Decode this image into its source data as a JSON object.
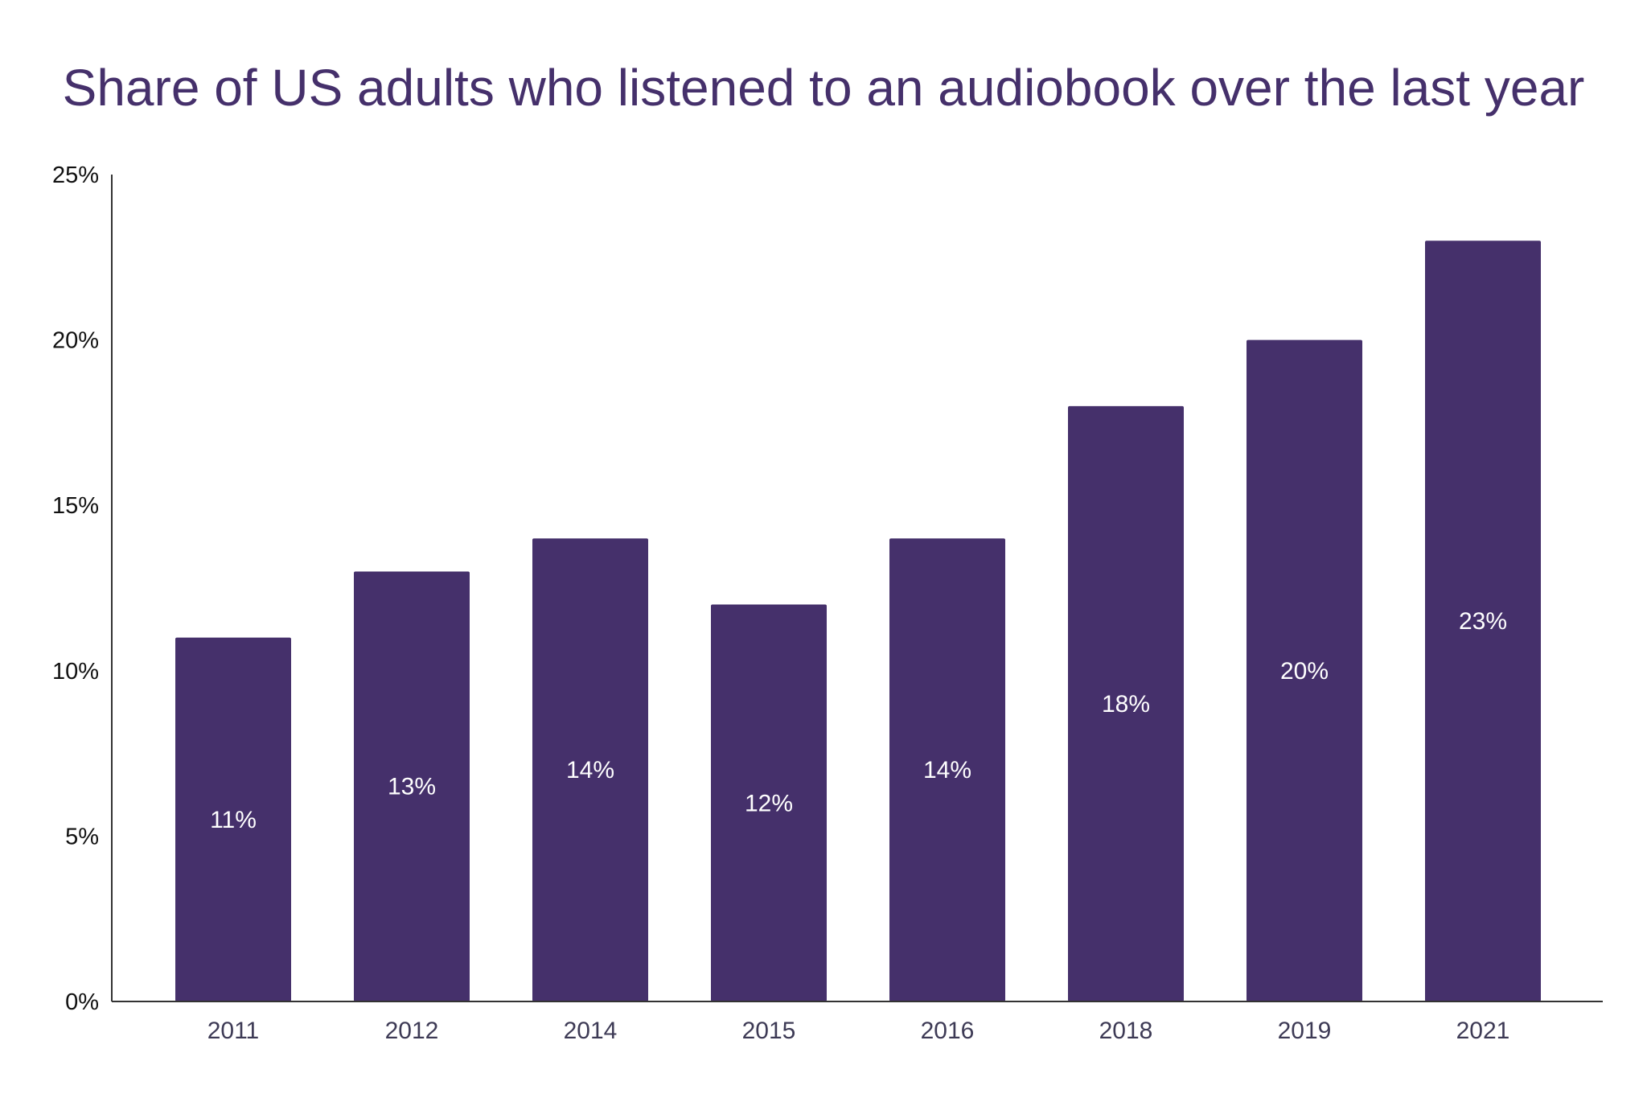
{
  "chart_data": {
    "type": "bar",
    "title": "Share of US adults who listened to an audiobook over the last year",
    "xlabel": "",
    "ylabel": "",
    "categories": [
      "2011",
      "2012",
      "2014",
      "2015",
      "2016",
      "2018",
      "2019",
      "2021"
    ],
    "values": [
      11,
      13,
      14,
      12,
      14,
      18,
      20,
      23
    ],
    "value_labels": [
      "11%",
      "13%",
      "14%",
      "12%",
      "14%",
      "18%",
      "20%",
      "23%"
    ],
    "ylim": [
      0,
      25
    ],
    "yticks": [
      0,
      5,
      10,
      15,
      20,
      25
    ],
    "ytick_labels": [
      "0%",
      "5%",
      "10%",
      "15%",
      "20%",
      "25%"
    ],
    "grid": false,
    "bar_color": "#45306b"
  }
}
